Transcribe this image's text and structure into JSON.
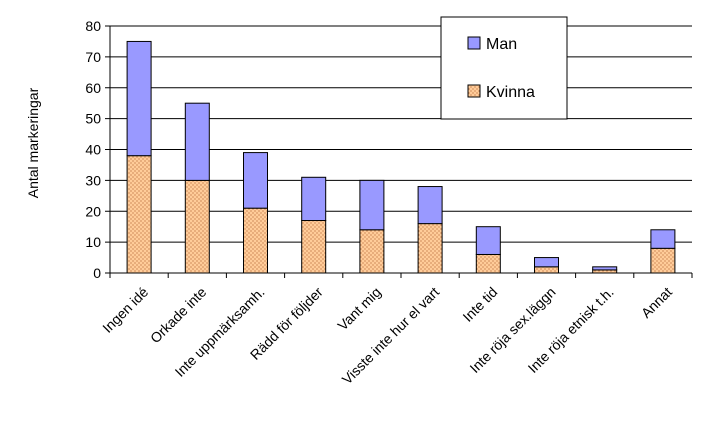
{
  "chart_data": {
    "type": "bar",
    "stacked": true,
    "ylabel": "Antal markeringar",
    "ylim": [
      0,
      80
    ],
    "yticks": [
      0,
      10,
      20,
      30,
      40,
      50,
      60,
      70,
      80
    ],
    "grid": true,
    "legend_position": "top-right",
    "categories": [
      "Ingen idé",
      "Orkade inte",
      "Inte uppmärksamh.",
      "Rädd för följder",
      "Vant mig",
      "Visste inte hur el vart",
      "Inte tid",
      "Inte röja sex.läggn",
      "Inte röja etnisk t.h.",
      "Annat"
    ],
    "series": [
      {
        "name": "Kvinna",
        "values": [
          38,
          30,
          21,
          17,
          14,
          16,
          6,
          2,
          1,
          8
        ],
        "color": "#ffcc99",
        "pattern": "dotted"
      },
      {
        "name": "Man",
        "values": [
          37,
          25,
          18,
          14,
          16,
          12,
          9,
          3,
          1,
          6
        ],
        "color": "#9999ff"
      }
    ],
    "legend_order": [
      "Man",
      "Kvinna"
    ]
  }
}
